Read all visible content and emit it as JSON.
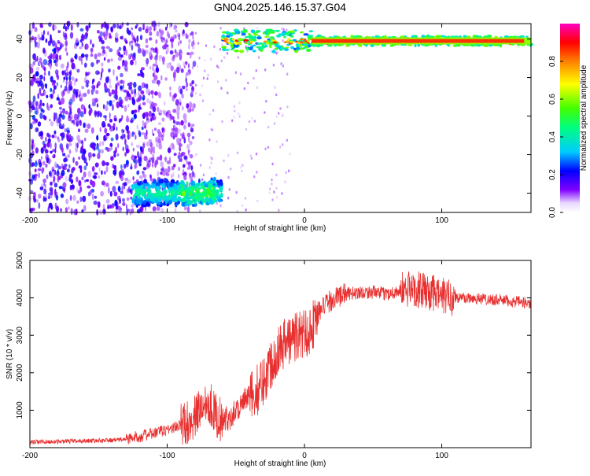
{
  "figure_title": "GN04.2025.146.15.37.G04",
  "colorbar": {
    "label": "Normalized spectral amplitude",
    "ticks": [
      "0.0",
      "0.2",
      "0.4",
      "0.6",
      "0.8"
    ],
    "tick_values": [
      0.0,
      0.2,
      0.4,
      0.6,
      0.8
    ],
    "range": [
      0,
      1
    ]
  },
  "chart_data": [
    {
      "type": "heatmap",
      "title": "",
      "xlabel": "Height of straight line (km)",
      "ylabel": "Frequency (Hz)",
      "xlim": [
        -200,
        165
      ],
      "ylim": [
        -50,
        48
      ],
      "xticks": [
        -200,
        -100,
        0,
        100
      ],
      "xtick_labels": [
        "-200",
        "-100",
        "0",
        "100"
      ],
      "yticks": [
        -40,
        -20,
        0,
        20,
        40
      ],
      "ytick_labels": [
        "-40",
        "-20",
        "0",
        "20",
        "40"
      ],
      "grid": false,
      "colormap": "rainbow",
      "features": [
        {
          "name": "noise-scatter",
          "x_range": [
            -200,
            -90
          ],
          "y_range": [
            -50,
            48
          ],
          "amplitude": 0.15
        },
        {
          "name": "negative-branch",
          "x_range": [
            -125,
            -60
          ],
          "y_center": -40,
          "amplitude": 0.45
        },
        {
          "name": "positive-branch",
          "x_range": [
            -60,
            165
          ],
          "y_center": 39,
          "amplitude": 0.9
        }
      ]
    },
    {
      "type": "line",
      "title": "",
      "xlabel": "Height of straight line (km)",
      "ylabel": "SNR (10 * v/v)",
      "xlim": [
        -200,
        165
      ],
      "ylim": [
        0,
        5000
      ],
      "xticks": [
        -200,
        -100,
        0,
        100
      ],
      "xtick_labels": [
        "-200",
        "-100",
        "0",
        "100"
      ],
      "yticks": [
        1000,
        2000,
        3000,
        4000,
        5000
      ],
      "ytick_labels": [
        "1000",
        "2000",
        "3000",
        "4000",
        "5000"
      ],
      "grid": false,
      "color": "#e83030",
      "x": [
        -200,
        -180,
        -160,
        -140,
        -130,
        -120,
        -110,
        -100,
        -90,
        -80,
        -75,
        -70,
        -65,
        -60,
        -55,
        -50,
        -45,
        -40,
        -35,
        -30,
        -25,
        -20,
        -15,
        -10,
        -5,
        0,
        5,
        10,
        15,
        20,
        25,
        30,
        40,
        50,
        60,
        70,
        80,
        90,
        100,
        110,
        120,
        140,
        165
      ],
      "y": [
        150,
        160,
        180,
        200,
        230,
        300,
        380,
        480,
        600,
        800,
        1100,
        1300,
        900,
        700,
        800,
        1000,
        1200,
        1350,
        1500,
        1800,
        2200,
        2600,
        2800,
        2900,
        3000,
        3050,
        3200,
        3600,
        3800,
        3950,
        4050,
        4100,
        4150,
        4150,
        4100,
        4200,
        4250,
        4150,
        4050,
        4000,
        4000,
        3950,
        3850
      ]
    }
  ]
}
